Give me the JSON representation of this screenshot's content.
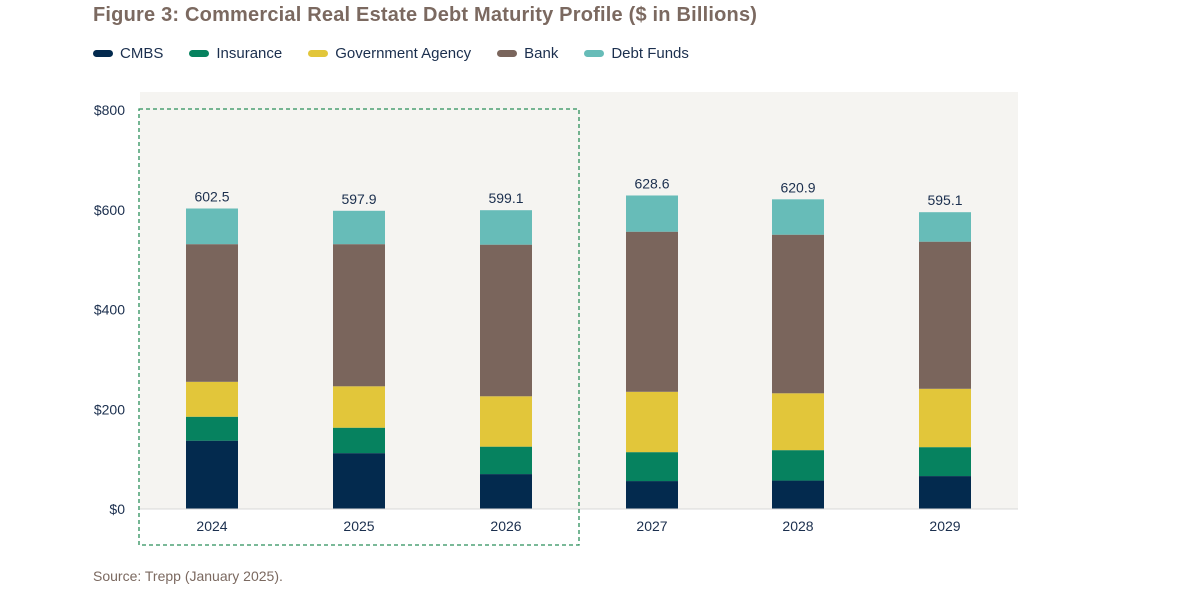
{
  "title": "Figure 3: Commercial Real Estate Debt Maturity Profile ($ in Billions)",
  "source": "Source: Trepp (January 2025).",
  "colors": {
    "CMBS": "#032a4e",
    "Insurance": "#06825f",
    "Government Agency": "#e2c63a",
    "Bank": "#7a655c",
    "Debt Funds": "#67bcb8",
    "plot_background": "#f5f4f1",
    "highlight_border": "#2b8f5a",
    "axis_text": "#1b2f4e"
  },
  "chart_data": {
    "type": "bar",
    "stacked": true,
    "categories": [
      "2024",
      "2025",
      "2026",
      "2027",
      "2028",
      "2029"
    ],
    "series": [
      {
        "name": "CMBS",
        "values": [
          137,
          112,
          70,
          56,
          57,
          66
        ]
      },
      {
        "name": "Insurance",
        "values": [
          48,
          51,
          55,
          58,
          61,
          58
        ]
      },
      {
        "name": "Government Agency",
        "values": [
          70,
          83,
          101,
          121,
          114,
          117
        ]
      },
      {
        "name": "Bank",
        "values": [
          276,
          285,
          304,
          321,
          318,
          295
        ]
      },
      {
        "name": "Debt Funds",
        "values": [
          71.5,
          66.9,
          69.1,
          72.6,
          70.9,
          59.1
        ]
      }
    ],
    "totals": [
      "602.5",
      "597.9",
      "599.1",
      "628.6",
      "620.9",
      "595.1"
    ],
    "yticks": [
      "$0",
      "$200",
      "$400",
      "$600",
      "$800"
    ],
    "ytick_values": [
      0,
      200,
      400,
      600,
      800
    ],
    "ylim": [
      0,
      800
    ],
    "legend_position": "top-left",
    "highlighted_categories": [
      "2024",
      "2025",
      "2026"
    ],
    "grid": false
  }
}
